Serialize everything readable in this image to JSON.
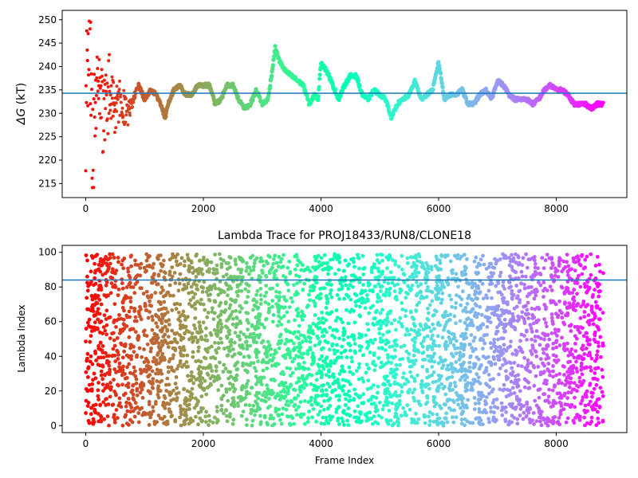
{
  "chart_data": [
    {
      "type": "scatter",
      "title": "",
      "xlabel": "",
      "ylabel": "ΔG (kT)",
      "ylabel_symbol": "ΔG",
      "ylabel_unit": " (kT)",
      "xlim": [
        -400,
        9200
      ],
      "ylim": [
        212,
        252
      ],
      "xticks": [
        0,
        2000,
        4000,
        6000,
        8000
      ],
      "yticks": [
        215,
        220,
        225,
        230,
        235,
        240,
        245,
        250
      ],
      "hline": 234.3,
      "hline_color": "#1f77b4",
      "colormap": "rainbow",
      "x_max": 8800,
      "trace": [
        [
          0,
          230
        ],
        [
          60,
          250
        ],
        [
          120,
          222
        ],
        [
          200,
          238
        ],
        [
          300,
          228
        ],
        [
          400,
          235
        ],
        [
          500,
          231
        ],
        [
          600,
          234
        ],
        [
          700,
          229
        ],
        [
          800,
          233
        ],
        [
          900,
          236
        ],
        [
          1000,
          233
        ],
        [
          1100,
          235
        ],
        [
          1200,
          234
        ],
        [
          1300,
          231
        ],
        [
          1350,
          229
        ],
        [
          1400,
          232
        ],
        [
          1500,
          235
        ],
        [
          1600,
          236
        ],
        [
          1700,
          234
        ],
        [
          1800,
          234
        ],
        [
          1900,
          236
        ],
        [
          2000,
          236
        ],
        [
          2100,
          236
        ],
        [
          2200,
          232
        ],
        [
          2300,
          233
        ],
        [
          2400,
          236
        ],
        [
          2500,
          236
        ],
        [
          2600,
          233
        ],
        [
          2700,
          231
        ],
        [
          2800,
          232
        ],
        [
          2900,
          235
        ],
        [
          3000,
          232
        ],
        [
          3100,
          233
        ],
        [
          3180,
          240
        ],
        [
          3220,
          244
        ],
        [
          3300,
          241
        ],
        [
          3400,
          239
        ],
        [
          3500,
          238
        ],
        [
          3600,
          237
        ],
        [
          3700,
          236
        ],
        [
          3800,
          232
        ],
        [
          3900,
          234
        ],
        [
          3950,
          233
        ],
        [
          4000,
          241
        ],
        [
          4100,
          239
        ],
        [
          4200,
          236
        ],
        [
          4300,
          233
        ],
        [
          4400,
          236
        ],
        [
          4500,
          238
        ],
        [
          4600,
          238
        ],
        [
          4700,
          234
        ],
        [
          4800,
          233
        ],
        [
          4900,
          235
        ],
        [
          5000,
          234
        ],
        [
          5100,
          233
        ],
        [
          5200,
          229
        ],
        [
          5300,
          232
        ],
        [
          5400,
          233
        ],
        [
          5500,
          234
        ],
        [
          5600,
          237
        ],
        [
          5700,
          233
        ],
        [
          5800,
          234
        ],
        [
          5900,
          235
        ],
        [
          6000,
          241
        ],
        [
          6100,
          233
        ],
        [
          6200,
          234
        ],
        [
          6300,
          234
        ],
        [
          6400,
          235
        ],
        [
          6500,
          232
        ],
        [
          6600,
          232
        ],
        [
          6700,
          234
        ],
        [
          6800,
          235
        ],
        [
          6900,
          233
        ],
        [
          7000,
          237
        ],
        [
          7100,
          236
        ],
        [
          7200,
          234
        ],
        [
          7300,
          233
        ],
        [
          7400,
          233
        ],
        [
          7500,
          233
        ],
        [
          7600,
          232
        ],
        [
          7700,
          233
        ],
        [
          7800,
          235
        ],
        [
          7900,
          236
        ],
        [
          8000,
          235
        ],
        [
          8100,
          235
        ],
        [
          8200,
          234
        ],
        [
          8300,
          232
        ],
        [
          8400,
          232
        ],
        [
          8500,
          232
        ],
        [
          8600,
          231
        ],
        [
          8700,
          232
        ],
        [
          8800,
          232
        ]
      ]
    },
    {
      "type": "scatter",
      "title": "Lambda Trace for PROJ18433/RUN8/CLONE18",
      "xlabel": "Frame Index",
      "ylabel": "Lambda Index",
      "xlim": [
        -400,
        9200
      ],
      "ylim": [
        -4,
        104
      ],
      "xticks": [
        0,
        2000,
        4000,
        6000,
        8000
      ],
      "yticks": [
        0,
        20,
        40,
        60,
        80,
        100
      ],
      "hline": 84,
      "hline_color": "#1f77b4",
      "colormap": "rainbow",
      "value_range": [
        0,
        99
      ],
      "x_max": 8800,
      "approx_point_count": 9000
    }
  ]
}
